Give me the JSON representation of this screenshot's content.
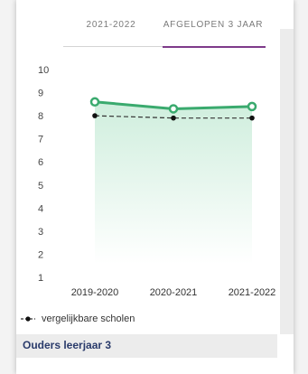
{
  "tabs": [
    {
      "label": "2021-2022",
      "active": false
    },
    {
      "label": "AFGELOPEN 3 JAAR",
      "active": true
    }
  ],
  "chart_data": {
    "type": "line",
    "categories": [
      "2019-2020",
      "2020-2021",
      "2021-2022"
    ],
    "series": [
      {
        "name": "",
        "values": [
          8.6,
          8.3,
          8.4
        ],
        "color": "#3aaa6e",
        "fill": "#e6f6ee"
      },
      {
        "name": "vergelijkbare scholen",
        "values": [
          8.0,
          7.9,
          7.9
        ],
        "color": "#333333",
        "dashed": true
      }
    ],
    "yticks": [
      1,
      2,
      3,
      4,
      5,
      6,
      7,
      8,
      9,
      10
    ],
    "ylim": [
      1,
      10
    ],
    "grid": false,
    "legend": "bottom-left"
  },
  "legend": {
    "label": "vergelijkbare scholen"
  },
  "section": {
    "title": "Ouders leerjaar 3"
  }
}
